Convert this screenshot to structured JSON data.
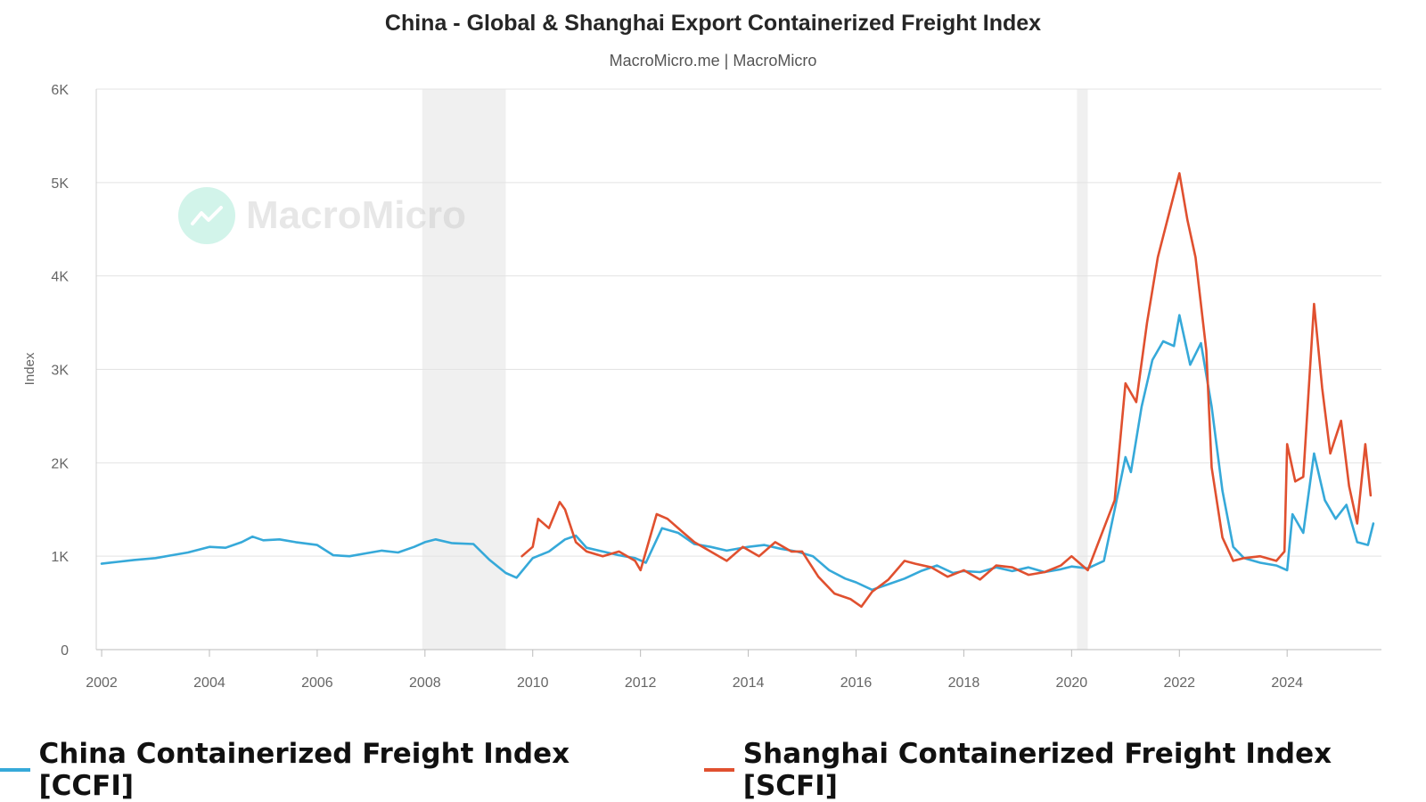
{
  "title": "China - Global & Shanghai Export Containerized Freight Index",
  "subtitle": "MacroMicro.me | MacroMicro",
  "watermark": "MacroMicro",
  "chart_data": {
    "type": "line",
    "title": "China - Global & Shanghai Export Containerized Freight Index",
    "subtitle": "MacroMicro.me | MacroMicro",
    "ylabel": "Index",
    "xlabel": "",
    "xlim": [
      2002,
      2025.6
    ],
    "ylim": [
      0,
      6000
    ],
    "y_ticks": [
      0,
      1000,
      2000,
      3000,
      4000,
      5000,
      6000
    ],
    "y_tick_labels": [
      "0",
      "1K",
      "2K",
      "3K",
      "4K",
      "5K",
      "6K"
    ],
    "x_ticks": [
      2002,
      2004,
      2006,
      2008,
      2010,
      2012,
      2014,
      2016,
      2018,
      2020,
      2022,
      2024
    ],
    "x_tick_labels": [
      "2002",
      "2004",
      "2006",
      "2008",
      "2010",
      "2012",
      "2014",
      "2016",
      "2018",
      "2020",
      "2022",
      "2024"
    ],
    "grid": true,
    "legend_position": "bottom",
    "recession_bands": [
      [
        2007.95,
        2009.5
      ],
      [
        2020.1,
        2020.3
      ]
    ],
    "series": [
      {
        "name": "China Containerized Freight Index [CCFI]",
        "color": "#36a9d9",
        "x": [
          2002.0,
          2002.3,
          2002.6,
          2003.0,
          2003.3,
          2003.6,
          2004.0,
          2004.3,
          2004.6,
          2004.8,
          2005.0,
          2005.3,
          2005.6,
          2006.0,
          2006.3,
          2006.6,
          2006.9,
          2007.2,
          2007.5,
          2007.8,
          2008.0,
          2008.2,
          2008.5,
          2008.9,
          2009.2,
          2009.5,
          2009.7,
          2010.0,
          2010.3,
          2010.6,
          2010.8,
          2011.0,
          2011.3,
          2011.6,
          2011.9,
          2012.1,
          2012.4,
          2012.7,
          2013.0,
          2013.3,
          2013.6,
          2014.0,
          2014.3,
          2014.6,
          2014.9,
          2015.2,
          2015.5,
          2015.8,
          2016.0,
          2016.3,
          2016.6,
          2016.9,
          2017.2,
          2017.5,
          2017.8,
          2018.0,
          2018.3,
          2018.6,
          2018.9,
          2019.2,
          2019.5,
          2019.8,
          2020.0,
          2020.3,
          2020.6,
          2020.8,
          2021.0,
          2021.1,
          2021.3,
          2021.5,
          2021.7,
          2021.9,
          2022.0,
          2022.2,
          2022.4,
          2022.6,
          2022.8,
          2023.0,
          2023.2,
          2023.5,
          2023.8,
          2024.0,
          2024.1,
          2024.3,
          2024.5,
          2024.7,
          2024.9,
          2025.1,
          2025.3,
          2025.5,
          2025.6
        ],
        "values": [
          920,
          940,
          960,
          980,
          1010,
          1040,
          1100,
          1090,
          1150,
          1210,
          1170,
          1180,
          1150,
          1120,
          1010,
          1000,
          1030,
          1060,
          1040,
          1100,
          1150,
          1180,
          1140,
          1130,
          960,
          820,
          770,
          980,
          1050,
          1180,
          1220,
          1090,
          1050,
          1010,
          980,
          930,
          1300,
          1250,
          1130,
          1100,
          1060,
          1100,
          1120,
          1080,
          1050,
          1000,
          850,
          760,
          720,
          640,
          700,
          760,
          840,
          900,
          820,
          840,
          830,
          880,
          840,
          880,
          830,
          860,
          890,
          870,
          950,
          1500,
          2060,
          1900,
          2600,
          3100,
          3300,
          3250,
          3580,
          3050,
          3280,
          2600,
          1700,
          1100,
          980,
          930,
          900,
          850,
          1450,
          1250,
          2100,
          1600,
          1400,
          1550,
          1150,
          1120,
          1350
        ]
      },
      {
        "name": "Shanghai Containerized Freight Index [SCFI]",
        "color": "#e0502f",
        "x": [
          2009.8,
          2010.0,
          2010.1,
          2010.3,
          2010.5,
          2010.6,
          2010.8,
          2011.0,
          2011.3,
          2011.6,
          2011.9,
          2012.0,
          2012.3,
          2012.5,
          2012.8,
          2013.0,
          2013.3,
          2013.6,
          2013.9,
          2014.2,
          2014.5,
          2014.8,
          2015.0,
          2015.3,
          2015.6,
          2015.9,
          2016.1,
          2016.3,
          2016.6,
          2016.9,
          2017.1,
          2017.4,
          2017.7,
          2018.0,
          2018.3,
          2018.6,
          2018.9,
          2019.2,
          2019.5,
          2019.8,
          2020.0,
          2020.3,
          2020.6,
          2020.8,
          2021.0,
          2021.2,
          2021.4,
          2021.6,
          2021.8,
          2022.0,
          2022.15,
          2022.3,
          2022.5,
          2022.6,
          2022.8,
          2023.0,
          2023.2,
          2023.5,
          2023.8,
          2023.95,
          2024.0,
          2024.15,
          2024.3,
          2024.5,
          2024.65,
          2024.8,
          2025.0,
          2025.15,
          2025.3,
          2025.45,
          2025.55
        ],
        "values": [
          1000,
          1100,
          1400,
          1300,
          1580,
          1500,
          1150,
          1050,
          1000,
          1050,
          950,
          850,
          1450,
          1400,
          1250,
          1150,
          1050,
          950,
          1100,
          1000,
          1150,
          1050,
          1050,
          780,
          600,
          540,
          460,
          620,
          750,
          950,
          920,
          880,
          780,
          850,
          750,
          900,
          880,
          800,
          830,
          900,
          1000,
          850,
          1300,
          1600,
          2850,
          2650,
          3500,
          4200,
          4650,
          5100,
          4600,
          4200,
          3200,
          1950,
          1200,
          950,
          980,
          1000,
          950,
          1050,
          2200,
          1800,
          1850,
          3700,
          2800,
          2100,
          2450,
          1750,
          1350,
          2200,
          1650
        ]
      }
    ]
  }
}
